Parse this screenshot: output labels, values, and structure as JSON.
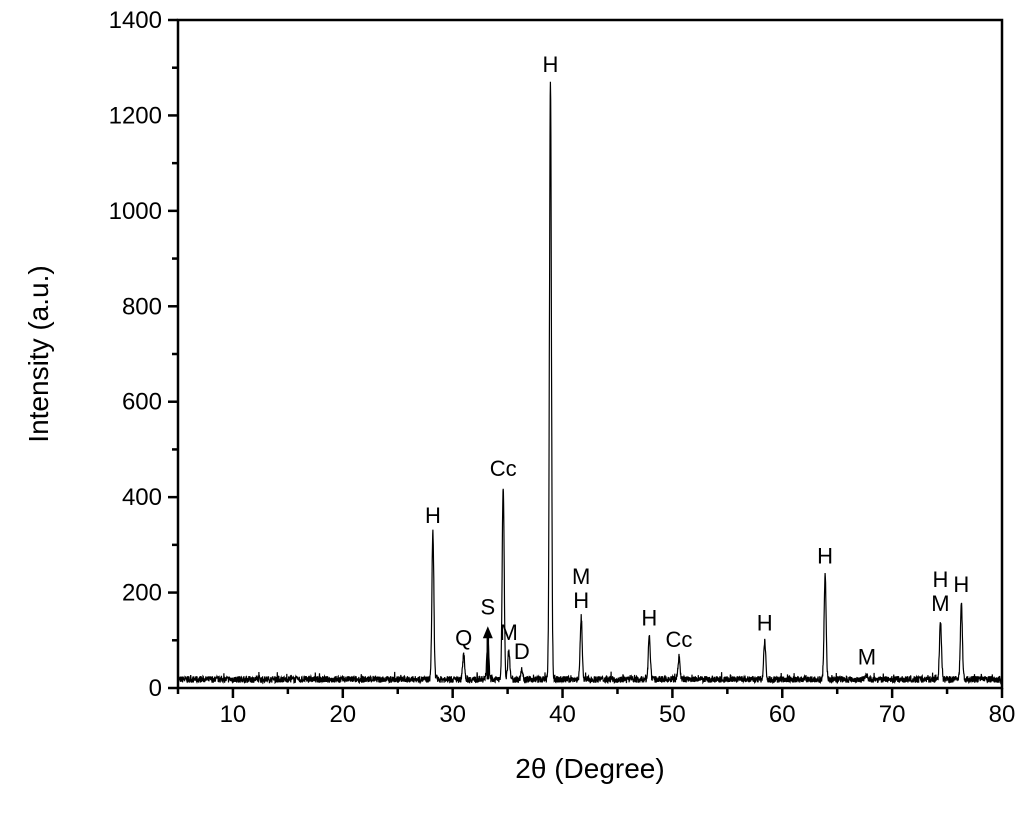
{
  "chart_data": {
    "type": "line",
    "title": "",
    "xlabel": "2θ (Degree)",
    "ylabel": "Intensity (a.u.)",
    "xlim": [
      5,
      80
    ],
    "ylim": [
      0,
      1400
    ],
    "xticks": [
      10,
      20,
      30,
      40,
      50,
      60,
      70,
      80
    ],
    "yticks": [
      0,
      200,
      400,
      600,
      800,
      1000,
      1200,
      1400
    ],
    "grid": false,
    "legend": "none",
    "line_color": "#000000",
    "baseline_intensity": 18,
    "peaks": [
      {
        "two_theta": 28.2,
        "intensity": 325,
        "labels": [
          "H"
        ]
      },
      {
        "two_theta": 31.0,
        "intensity": 68,
        "labels": [
          "Q"
        ]
      },
      {
        "two_theta": 33.2,
        "intensity": 100,
        "labels": [
          "S"
        ],
        "arrow": true
      },
      {
        "two_theta": 34.6,
        "intensity": 423,
        "labels": [
          "Cc"
        ]
      },
      {
        "two_theta": 35.1,
        "intensity": 80,
        "labels": [
          "M"
        ]
      },
      {
        "two_theta": 36.3,
        "intensity": 40,
        "labels": [
          "D"
        ]
      },
      {
        "two_theta": 38.9,
        "intensity": 1270,
        "labels": [
          "H"
        ]
      },
      {
        "two_theta": 41.7,
        "intensity": 147,
        "labels": [
          "M",
          "H"
        ]
      },
      {
        "two_theta": 47.9,
        "intensity": 110,
        "labels": [
          "H"
        ]
      },
      {
        "two_theta": 50.6,
        "intensity": 65,
        "labels": [
          "Cc"
        ]
      },
      {
        "two_theta": 58.4,
        "intensity": 100,
        "labels": [
          "H"
        ]
      },
      {
        "two_theta": 63.9,
        "intensity": 240,
        "labels": [
          "H"
        ]
      },
      {
        "two_theta": 67.7,
        "intensity": 28,
        "labels": [
          "M"
        ]
      },
      {
        "two_theta": 74.4,
        "intensity": 140,
        "labels": [
          "H",
          "M"
        ]
      },
      {
        "two_theta": 76.3,
        "intensity": 180,
        "labels": [
          "H"
        ]
      }
    ]
  }
}
